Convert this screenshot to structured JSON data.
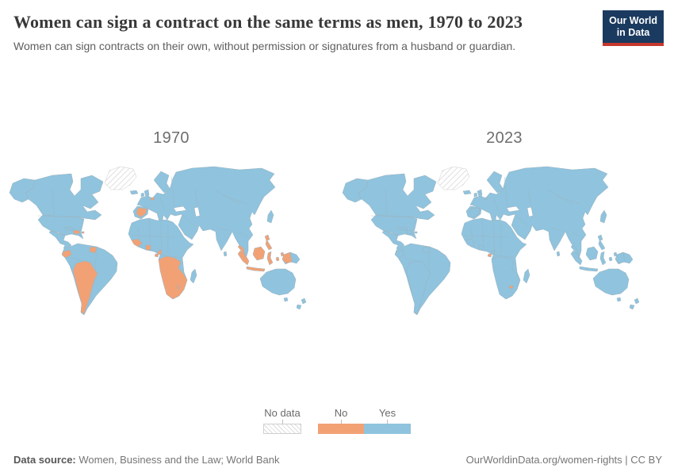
{
  "header": {
    "title": "Women can sign a contract on the same terms as men, 1970 to 2023",
    "subtitle": "Women can sign contracts on their own, without permission or signatures from a husband or guardian.",
    "logo_line1": "Our World",
    "logo_line2": "in Data"
  },
  "colors": {
    "yes": "#8fc3de",
    "no": "#f2a175",
    "border": "#9db3bd",
    "hatch": "#d8d8d8",
    "hatch_border": "#cccccc",
    "logo_bg": "#1a3a5f",
    "logo_red": "#c5372d"
  },
  "maps": [
    {
      "year": "1970",
      "region_status": {
        "greenland": "no_data",
        "spain": "no",
        "belgium": "no",
        "caribbean": "no",
        "ecuador": "no",
        "suriname": "no",
        "southern_cone": "no",
        "west_africa": "no",
        "ghana": "no",
        "cameroon": "no",
        "southern_africa": "no",
        "equatorial_guinea": "no",
        "eswatini": "no",
        "malay_peninsula": "no",
        "sumatra": "no",
        "borneo": "no",
        "java": "no",
        "sulawesi": "no",
        "moluccas": "no",
        "philippines": "no",
        "west_papua": "no"
      }
    },
    {
      "year": "2023",
      "region_status": {
        "greenland": "no_data",
        "equatorial_guinea": "no",
        "eswatini": "no"
      }
    }
  ],
  "legend": {
    "no_data": "No data",
    "no": "No",
    "yes": "Yes"
  },
  "footer": {
    "source_label": "Data source:",
    "source_text": " Women, Business and the Law; World Bank",
    "rights_text": "OurWorldinData.org/women-rights | CC BY"
  },
  "chart_data": {
    "type": "map",
    "title": "Women can sign a contract on the same terms as men, 1970 to 2023",
    "subtitle": "Women can sign contracts on their own, without permission or signatures from a husband or guardian.",
    "legend_categories": [
      "No data",
      "No",
      "Yes"
    ],
    "legend_position": "bottom-center",
    "panels": [
      {
        "year": 1970,
        "default_value": "Yes",
        "no_data": [
          "Greenland"
        ],
        "no": [
          "Spain",
          "Belgium",
          "Haiti",
          "Dominican Republic",
          "Puerto Rico",
          "Ecuador",
          "Suriname",
          "Bolivia",
          "Paraguay",
          "Chile",
          "Argentina",
          "Guinea",
          "Sierra Leone",
          "Liberia",
          "Ghana",
          "Cameroon",
          "Angola",
          "Zambia",
          "Zimbabwe",
          "Namibia",
          "Botswana",
          "South Africa",
          "Lesotho",
          "Eswatini",
          "Mozambique",
          "Malaysia",
          "Indonesia",
          "Philippines"
        ]
      },
      {
        "year": 2023,
        "default_value": "Yes",
        "no_data": [
          "Greenland"
        ],
        "no": [
          "Equatorial Guinea",
          "Eswatini"
        ]
      }
    ],
    "source": "Women, Business and the Law; World Bank"
  }
}
